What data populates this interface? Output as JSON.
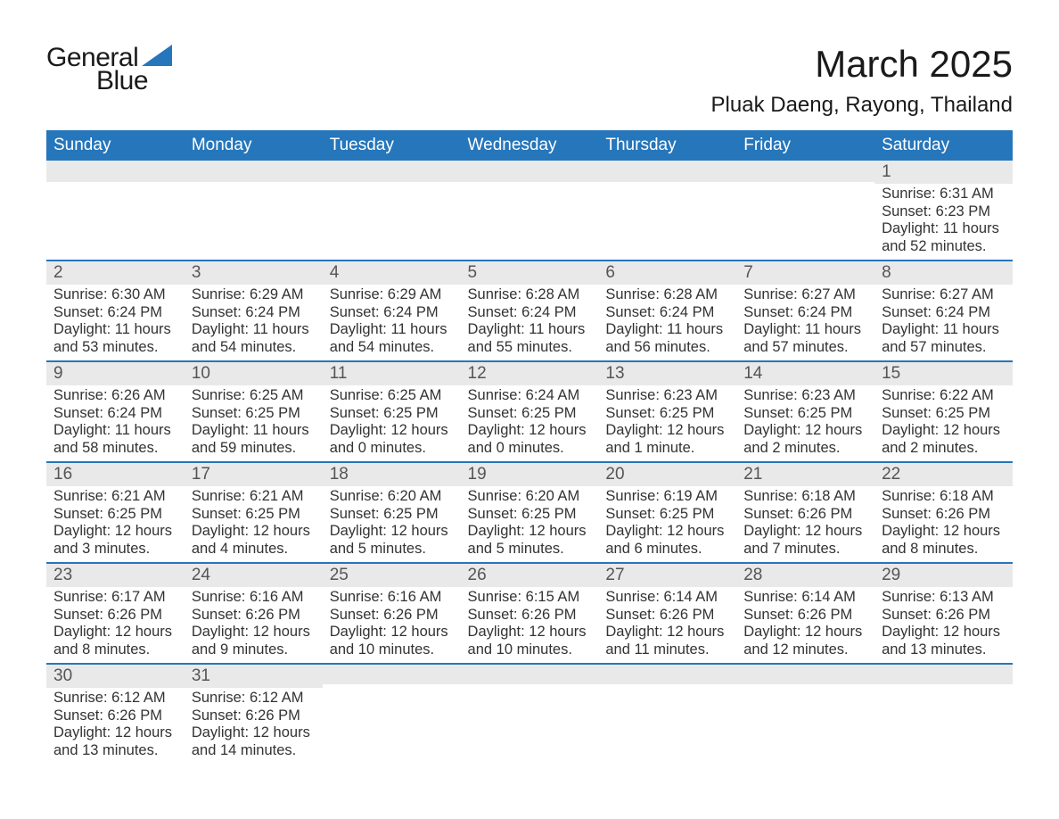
{
  "logo": {
    "word1": "General",
    "word2": "Blue",
    "triangle_color": "#2676bb"
  },
  "title": "March 2025",
  "location": "Pluak Daeng, Rayong, Thailand",
  "colors": {
    "header_bg": "#2676bb",
    "header_text": "#ffffff",
    "daynum_bg": "#e9e9e9",
    "row_border": "#2676bb",
    "body_text": "#333333",
    "background": "#ffffff"
  },
  "typography": {
    "title_fontsize": 42,
    "location_fontsize": 24,
    "header_fontsize": 19,
    "daynum_fontsize": 19,
    "body_fontsize": 16.5,
    "font_family": "Arial"
  },
  "day_headers": [
    "Sunday",
    "Monday",
    "Tuesday",
    "Wednesday",
    "Thursday",
    "Friday",
    "Saturday"
  ],
  "weeks": [
    [
      {
        "n": "",
        "sunrise": "",
        "sunset": "",
        "daylight": ""
      },
      {
        "n": "",
        "sunrise": "",
        "sunset": "",
        "daylight": ""
      },
      {
        "n": "",
        "sunrise": "",
        "sunset": "",
        "daylight": ""
      },
      {
        "n": "",
        "sunrise": "",
        "sunset": "",
        "daylight": ""
      },
      {
        "n": "",
        "sunrise": "",
        "sunset": "",
        "daylight": ""
      },
      {
        "n": "",
        "sunrise": "",
        "sunset": "",
        "daylight": ""
      },
      {
        "n": "1",
        "sunrise": "Sunrise: 6:31 AM",
        "sunset": "Sunset: 6:23 PM",
        "daylight": "Daylight: 11 hours and 52 minutes."
      }
    ],
    [
      {
        "n": "2",
        "sunrise": "Sunrise: 6:30 AM",
        "sunset": "Sunset: 6:24 PM",
        "daylight": "Daylight: 11 hours and 53 minutes."
      },
      {
        "n": "3",
        "sunrise": "Sunrise: 6:29 AM",
        "sunset": "Sunset: 6:24 PM",
        "daylight": "Daylight: 11 hours and 54 minutes."
      },
      {
        "n": "4",
        "sunrise": "Sunrise: 6:29 AM",
        "sunset": "Sunset: 6:24 PM",
        "daylight": "Daylight: 11 hours and 54 minutes."
      },
      {
        "n": "5",
        "sunrise": "Sunrise: 6:28 AM",
        "sunset": "Sunset: 6:24 PM",
        "daylight": "Daylight: 11 hours and 55 minutes."
      },
      {
        "n": "6",
        "sunrise": "Sunrise: 6:28 AM",
        "sunset": "Sunset: 6:24 PM",
        "daylight": "Daylight: 11 hours and 56 minutes."
      },
      {
        "n": "7",
        "sunrise": "Sunrise: 6:27 AM",
        "sunset": "Sunset: 6:24 PM",
        "daylight": "Daylight: 11 hours and 57 minutes."
      },
      {
        "n": "8",
        "sunrise": "Sunrise: 6:27 AM",
        "sunset": "Sunset: 6:24 PM",
        "daylight": "Daylight: 11 hours and 57 minutes."
      }
    ],
    [
      {
        "n": "9",
        "sunrise": "Sunrise: 6:26 AM",
        "sunset": "Sunset: 6:24 PM",
        "daylight": "Daylight: 11 hours and 58 minutes."
      },
      {
        "n": "10",
        "sunrise": "Sunrise: 6:25 AM",
        "sunset": "Sunset: 6:25 PM",
        "daylight": "Daylight: 11 hours and 59 minutes."
      },
      {
        "n": "11",
        "sunrise": "Sunrise: 6:25 AM",
        "sunset": "Sunset: 6:25 PM",
        "daylight": "Daylight: 12 hours and 0 minutes."
      },
      {
        "n": "12",
        "sunrise": "Sunrise: 6:24 AM",
        "sunset": "Sunset: 6:25 PM",
        "daylight": "Daylight: 12 hours and 0 minutes."
      },
      {
        "n": "13",
        "sunrise": "Sunrise: 6:23 AM",
        "sunset": "Sunset: 6:25 PM",
        "daylight": "Daylight: 12 hours and 1 minute."
      },
      {
        "n": "14",
        "sunrise": "Sunrise: 6:23 AM",
        "sunset": "Sunset: 6:25 PM",
        "daylight": "Daylight: 12 hours and 2 minutes."
      },
      {
        "n": "15",
        "sunrise": "Sunrise: 6:22 AM",
        "sunset": "Sunset: 6:25 PM",
        "daylight": "Daylight: 12 hours and 2 minutes."
      }
    ],
    [
      {
        "n": "16",
        "sunrise": "Sunrise: 6:21 AM",
        "sunset": "Sunset: 6:25 PM",
        "daylight": "Daylight: 12 hours and 3 minutes."
      },
      {
        "n": "17",
        "sunrise": "Sunrise: 6:21 AM",
        "sunset": "Sunset: 6:25 PM",
        "daylight": "Daylight: 12 hours and 4 minutes."
      },
      {
        "n": "18",
        "sunrise": "Sunrise: 6:20 AM",
        "sunset": "Sunset: 6:25 PM",
        "daylight": "Daylight: 12 hours and 5 minutes."
      },
      {
        "n": "19",
        "sunrise": "Sunrise: 6:20 AM",
        "sunset": "Sunset: 6:25 PM",
        "daylight": "Daylight: 12 hours and 5 minutes."
      },
      {
        "n": "20",
        "sunrise": "Sunrise: 6:19 AM",
        "sunset": "Sunset: 6:25 PM",
        "daylight": "Daylight: 12 hours and 6 minutes."
      },
      {
        "n": "21",
        "sunrise": "Sunrise: 6:18 AM",
        "sunset": "Sunset: 6:26 PM",
        "daylight": "Daylight: 12 hours and 7 minutes."
      },
      {
        "n": "22",
        "sunrise": "Sunrise: 6:18 AM",
        "sunset": "Sunset: 6:26 PM",
        "daylight": "Daylight: 12 hours and 8 minutes."
      }
    ],
    [
      {
        "n": "23",
        "sunrise": "Sunrise: 6:17 AM",
        "sunset": "Sunset: 6:26 PM",
        "daylight": "Daylight: 12 hours and 8 minutes."
      },
      {
        "n": "24",
        "sunrise": "Sunrise: 6:16 AM",
        "sunset": "Sunset: 6:26 PM",
        "daylight": "Daylight: 12 hours and 9 minutes."
      },
      {
        "n": "25",
        "sunrise": "Sunrise: 6:16 AM",
        "sunset": "Sunset: 6:26 PM",
        "daylight": "Daylight: 12 hours and 10 minutes."
      },
      {
        "n": "26",
        "sunrise": "Sunrise: 6:15 AM",
        "sunset": "Sunset: 6:26 PM",
        "daylight": "Daylight: 12 hours and 10 minutes."
      },
      {
        "n": "27",
        "sunrise": "Sunrise: 6:14 AM",
        "sunset": "Sunset: 6:26 PM",
        "daylight": "Daylight: 12 hours and 11 minutes."
      },
      {
        "n": "28",
        "sunrise": "Sunrise: 6:14 AM",
        "sunset": "Sunset: 6:26 PM",
        "daylight": "Daylight: 12 hours and 12 minutes."
      },
      {
        "n": "29",
        "sunrise": "Sunrise: 6:13 AM",
        "sunset": "Sunset: 6:26 PM",
        "daylight": "Daylight: 12 hours and 13 minutes."
      }
    ],
    [
      {
        "n": "30",
        "sunrise": "Sunrise: 6:12 AM",
        "sunset": "Sunset: 6:26 PM",
        "daylight": "Daylight: 12 hours and 13 minutes."
      },
      {
        "n": "31",
        "sunrise": "Sunrise: 6:12 AM",
        "sunset": "Sunset: 6:26 PM",
        "daylight": "Daylight: 12 hours and 14 minutes."
      },
      {
        "n": "",
        "sunrise": "",
        "sunset": "",
        "daylight": ""
      },
      {
        "n": "",
        "sunrise": "",
        "sunset": "",
        "daylight": ""
      },
      {
        "n": "",
        "sunrise": "",
        "sunset": "",
        "daylight": ""
      },
      {
        "n": "",
        "sunrise": "",
        "sunset": "",
        "daylight": ""
      },
      {
        "n": "",
        "sunrise": "",
        "sunset": "",
        "daylight": ""
      }
    ]
  ]
}
